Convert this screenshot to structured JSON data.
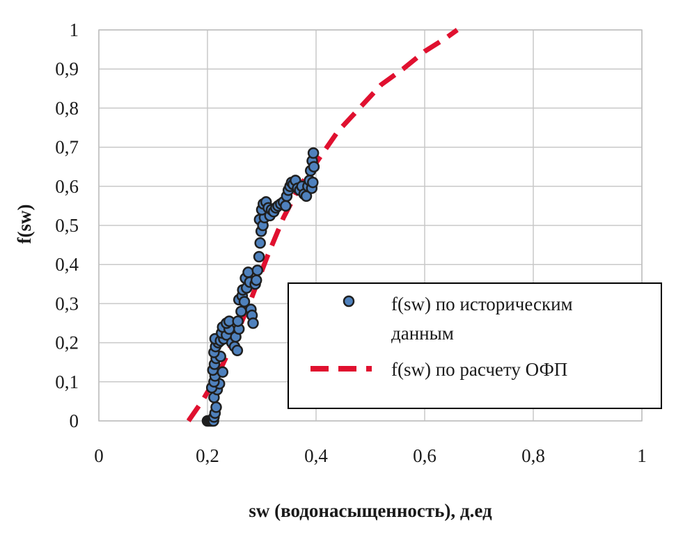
{
  "chart_data": {
    "type": "scatter",
    "xlabel": "sw (водонасыщенность), д.ед",
    "ylabel": "f(sw)",
    "xlim": [
      0,
      1
    ],
    "ylim": [
      0,
      1
    ],
    "x_ticks": [
      "0",
      "0,2",
      "0,4",
      "0,6",
      "0,8",
      "1"
    ],
    "y_ticks": [
      "0",
      "0,1",
      "0,2",
      "0,3",
      "0,4",
      "0,5",
      "0,6",
      "0,7",
      "0,8",
      "0,9",
      "1"
    ],
    "grid": true,
    "legend_position": "lower-right",
    "series": [
      {
        "name": "f(sw) по историческим данным",
        "kind": "markers",
        "color": "#4f81bd",
        "edge_color": "#1f1f1f",
        "points": [
          [
            0.2,
            0.0
          ],
          [
            0.203,
            0.0
          ],
          [
            0.206,
            0.0
          ],
          [
            0.209,
            0.0
          ],
          [
            0.211,
            0.0
          ],
          [
            0.212,
            0.01
          ],
          [
            0.214,
            0.02
          ],
          [
            0.216,
            0.035
          ],
          [
            0.212,
            0.06
          ],
          [
            0.218,
            0.08
          ],
          [
            0.208,
            0.085
          ],
          [
            0.222,
            0.095
          ],
          [
            0.212,
            0.1
          ],
          [
            0.214,
            0.115
          ],
          [
            0.21,
            0.13
          ],
          [
            0.228,
            0.125
          ],
          [
            0.213,
            0.145
          ],
          [
            0.216,
            0.16
          ],
          [
            0.224,
            0.165
          ],
          [
            0.212,
            0.175
          ],
          [
            0.215,
            0.19
          ],
          [
            0.22,
            0.2
          ],
          [
            0.214,
            0.21
          ],
          [
            0.224,
            0.205
          ],
          [
            0.23,
            0.21
          ],
          [
            0.226,
            0.225
          ],
          [
            0.235,
            0.22
          ],
          [
            0.228,
            0.24
          ],
          [
            0.24,
            0.235
          ],
          [
            0.235,
            0.25
          ],
          [
            0.24,
            0.255
          ],
          [
            0.245,
            0.2
          ],
          [
            0.25,
            0.19
          ],
          [
            0.255,
            0.18
          ],
          [
            0.252,
            0.215
          ],
          [
            0.258,
            0.235
          ],
          [
            0.256,
            0.255
          ],
          [
            0.262,
            0.28
          ],
          [
            0.258,
            0.31
          ],
          [
            0.264,
            0.32
          ],
          [
            0.268,
            0.305
          ],
          [
            0.265,
            0.335
          ],
          [
            0.272,
            0.34
          ],
          [
            0.27,
            0.365
          ],
          [
            0.275,
            0.38
          ],
          [
            0.278,
            0.355
          ],
          [
            0.28,
            0.285
          ],
          [
            0.282,
            0.27
          ],
          [
            0.284,
            0.25
          ],
          [
            0.288,
            0.35
          ],
          [
            0.29,
            0.36
          ],
          [
            0.292,
            0.385
          ],
          [
            0.295,
            0.42
          ],
          [
            0.297,
            0.455
          ],
          [
            0.299,
            0.485
          ],
          [
            0.296,
            0.515
          ],
          [
            0.302,
            0.5
          ],
          [
            0.305,
            0.52
          ],
          [
            0.3,
            0.54
          ],
          [
            0.303,
            0.555
          ],
          [
            0.308,
            0.56
          ],
          [
            0.312,
            0.545
          ],
          [
            0.315,
            0.525
          ],
          [
            0.318,
            0.54
          ],
          [
            0.322,
            0.535
          ],
          [
            0.326,
            0.545
          ],
          [
            0.33,
            0.55
          ],
          [
            0.335,
            0.555
          ],
          [
            0.34,
            0.56
          ],
          [
            0.344,
            0.55
          ],
          [
            0.346,
            0.575
          ],
          [
            0.349,
            0.59
          ],
          [
            0.352,
            0.6
          ],
          [
            0.355,
            0.61
          ],
          [
            0.358,
            0.605
          ],
          [
            0.362,
            0.615
          ],
          [
            0.366,
            0.595
          ],
          [
            0.37,
            0.59
          ],
          [
            0.374,
            0.6
          ],
          [
            0.378,
            0.58
          ],
          [
            0.382,
            0.575
          ],
          [
            0.385,
            0.6
          ],
          [
            0.388,
            0.615
          ],
          [
            0.39,
            0.64
          ],
          [
            0.392,
            0.595
          ],
          [
            0.393,
            0.665
          ],
          [
            0.395,
            0.685
          ],
          [
            0.396,
            0.65
          ],
          [
            0.394,
            0.61
          ]
        ]
      },
      {
        "name": "f(sw) по расчету ОФП",
        "kind": "dashed-line",
        "color": "#e0102f",
        "points": [
          [
            0.165,
            0.0
          ],
          [
            0.19,
            0.05
          ],
          [
            0.22,
            0.12
          ],
          [
            0.25,
            0.21
          ],
          [
            0.28,
            0.31
          ],
          [
            0.31,
            0.42
          ],
          [
            0.34,
            0.52
          ],
          [
            0.37,
            0.6
          ],
          [
            0.4,
            0.66
          ],
          [
            0.44,
            0.74
          ],
          [
            0.48,
            0.8
          ],
          [
            0.52,
            0.86
          ],
          [
            0.56,
            0.9
          ],
          [
            0.6,
            0.945
          ],
          [
            0.64,
            0.98
          ],
          [
            0.66,
            1.0
          ]
        ]
      }
    ]
  }
}
